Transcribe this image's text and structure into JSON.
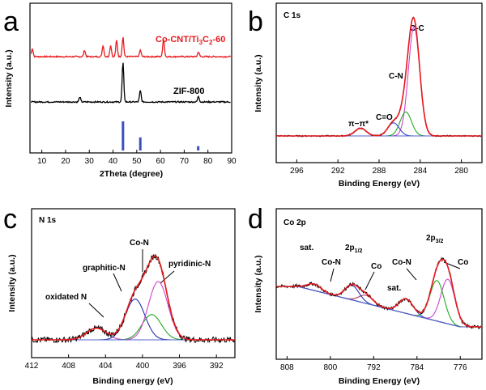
{
  "panels": {
    "a": {
      "letter": "a"
    },
    "b": {
      "letter": "b",
      "title": "C 1s"
    },
    "c": {
      "letter": "c",
      "title": "N 1s"
    },
    "d": {
      "letter": "d",
      "title": "Co 2p"
    }
  },
  "chart_data": [
    {
      "type": "line",
      "panel": "a",
      "xlabel": "2Theta (degree)",
      "ylabel": "Intensity (a.u.)",
      "xlim": [
        5,
        90
      ],
      "xticks": [
        "10",
        "20",
        "30",
        "40",
        "50",
        "60",
        "70",
        "80",
        "90"
      ],
      "series": [
        {
          "name": "Co-CNT/Ti3C2-60",
          "color": "#e8191d",
          "peaks": [
            [
              6,
              10
            ],
            [
              28,
              8
            ],
            [
              35.8,
              14
            ],
            [
              39,
              14
            ],
            [
              41.5,
              20
            ],
            [
              44.2,
              24
            ],
            [
              51.5,
              8
            ],
            [
              61.3,
              22
            ],
            [
              76,
              6
            ]
          ]
        },
        {
          "name": "ZIF-800",
          "color": "#000000",
          "peaks": [
            [
              26,
              6
            ],
            [
              44.2,
              48
            ],
            [
              51.5,
              14
            ],
            [
              76,
              7
            ]
          ]
        },
        {
          "name": "",
          "color": "#3a4fc4",
          "type": "stick",
          "peaks": [
            [
              44.2,
              1.0
            ],
            [
              51.5,
              0.45
            ],
            [
              75.9,
              0.15
            ]
          ]
        }
      ],
      "legend_labels": {
        "red": "Co-CNT/Ti",
        "red_sub1": "3",
        "red_mid": "C",
        "red_sub2": "2",
        "red_tail": "-60",
        "black": "ZIF-800"
      }
    },
    {
      "type": "line",
      "panel": "b",
      "xlabel": "Binding Energy (eV)",
      "ylabel": "Intensity (a.u.)",
      "xlim": [
        298,
        278
      ],
      "xticks": [
        "296",
        "292",
        "288",
        "284",
        "280"
      ],
      "components": [
        {
          "label": "C-C",
          "center": 284.6,
          "height": 1.0,
          "color": "#cc44cc"
        },
        {
          "label": "C-N",
          "center": 285.4,
          "height": 0.22,
          "color": "#22aa22"
        },
        {
          "label": "C=O",
          "center": 286.6,
          "height": 0.12,
          "color": "#3344cc"
        },
        {
          "label": "π−π*",
          "center": 289.8,
          "height": 0.07,
          "color": "#cc2222"
        }
      ]
    },
    {
      "type": "line",
      "panel": "c",
      "xlabel": "Binding energy (eV)",
      "ylabel": "Intensity (a.u.)",
      "xlim": [
        412,
        390
      ],
      "xticks": [
        "412",
        "408",
        "404",
        "400",
        "396",
        "392"
      ],
      "components": [
        {
          "label": "oxidated N",
          "center": 405,
          "height": 0.12,
          "color": "#cc44cc"
        },
        {
          "label": "graphitic-N",
          "center": 400.8,
          "height": 0.42,
          "color": "#2233aa"
        },
        {
          "label": "Co-N",
          "center": 399.0,
          "height": 0.26,
          "color": "#22aa22"
        },
        {
          "label": "pyridinic-N",
          "center": 398.3,
          "height": 0.6,
          "color": "#cc44cc"
        }
      ]
    },
    {
      "type": "line",
      "panel": "d",
      "xlabel": "Binding Energy (eV)",
      "ylabel": "Intensity (a.u.)",
      "xlim": [
        810,
        772
      ],
      "xticks": [
        "808",
        "800",
        "792",
        "784",
        "776"
      ],
      "annotations": [
        "sat.",
        "Co-N",
        "2p",
        "1/2",
        "Co",
        "sat.",
        "Co-N",
        "2p",
        "3/2",
        "Co"
      ],
      "components": [
        {
          "label": "Co 2p3/2",
          "center": 778.3,
          "height": 0.55,
          "color": "#cc44cc"
        },
        {
          "label": "Co-N 2p3/2",
          "center": 780.3,
          "height": 0.5,
          "color": "#22aa22"
        },
        {
          "label": "sat.",
          "center": 786,
          "height": 0.18,
          "color": "#3344cc"
        },
        {
          "label": "Co 2p1/2",
          "center": 793.4,
          "height": 0.1,
          "color": "#aa3366"
        },
        {
          "label": "Co-N 2p1/2",
          "center": 796,
          "height": 0.18,
          "color": "#2233aa"
        },
        {
          "label": "sat.",
          "center": 803,
          "height": 0.08,
          "color": "#4455cc"
        }
      ]
    }
  ],
  "annot": {
    "b": {
      "cc": "C-C",
      "cn": "C-N",
      "co": "C=O",
      "pi": "π−π*"
    },
    "c": {
      "ox": "oxidated N",
      "gr": "graphitic-N",
      "con": "Co-N",
      "py": "pyridinic-N"
    },
    "d": {
      "sat1": "sat.",
      "con1": "Co-N",
      "p12": "2p",
      "p12sub": "1/2",
      "co1": "Co",
      "sat2": "sat.",
      "con2": "Co-N",
      "p32": "2p",
      "p32sub": "3/2",
      "co2": "Co"
    }
  }
}
